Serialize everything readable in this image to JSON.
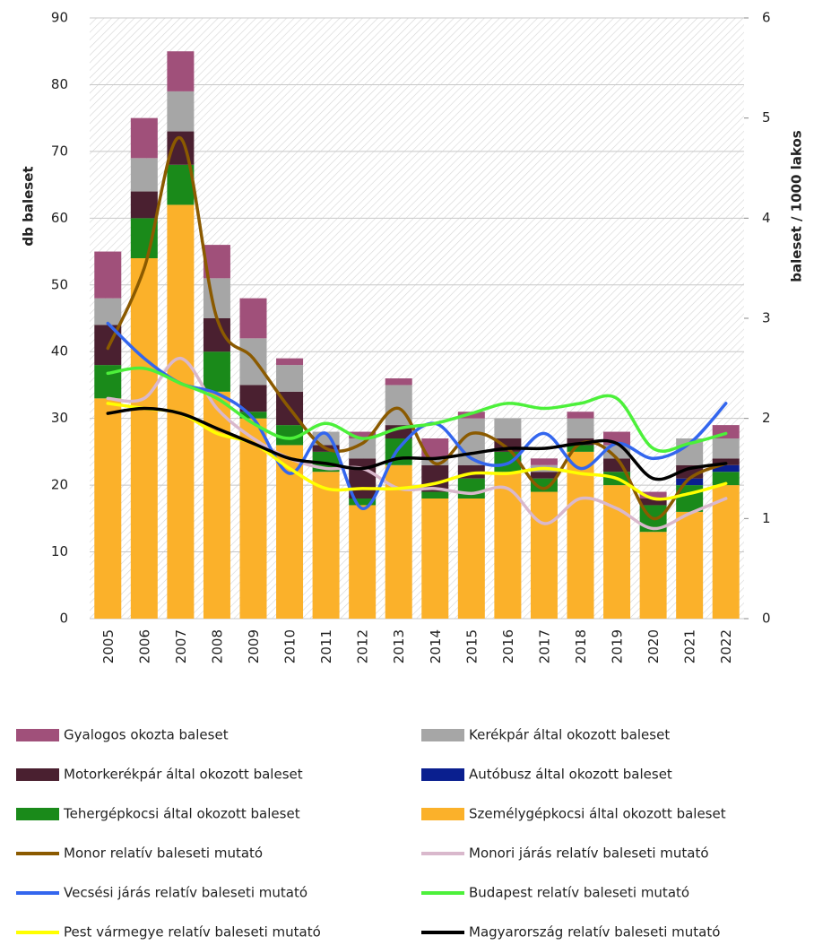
{
  "chart_data": {
    "type": "bar",
    "categories": [
      "2005",
      "2006",
      "2007",
      "2008",
      "2009",
      "2010",
      "2011",
      "2012",
      "2013",
      "2014",
      "2015",
      "2016",
      "2017",
      "2018",
      "2019",
      "2020",
      "2021",
      "2022"
    ],
    "y_label": "db baleset",
    "y2_label": "baleset / 1000 lakos",
    "ylim": [
      0,
      90
    ],
    "yticks": [
      0,
      10,
      20,
      30,
      40,
      50,
      60,
      70,
      80,
      90
    ],
    "y2lim": [
      0,
      6
    ],
    "y2ticks": [
      0,
      1,
      2,
      3,
      4,
      5,
      6
    ],
    "grid": true,
    "stacked": true,
    "legend": "bottom",
    "series": [
      {
        "name": "Személygépkocsi által okozott baleset",
        "type": "bar",
        "color": "#fbb12a",
        "values": [
          33,
          54,
          62,
          34,
          30,
          26,
          22,
          17,
          23,
          18,
          18,
          22,
          19,
          25,
          20,
          13,
          16,
          20
        ]
      },
      {
        "name": "Tehergépkocsi által okozott baleset",
        "type": "bar",
        "color": "#1a8a1a",
        "values": [
          5,
          6,
          6,
          6,
          1,
          3,
          3,
          1,
          4,
          1,
          3,
          3,
          2,
          1,
          2,
          4,
          4,
          2
        ]
      },
      {
        "name": "Autóbusz által okozott baleset",
        "type": "bar",
        "color": "#0a1f8f",
        "values": [
          0,
          0,
          0,
          0,
          0,
          0,
          0,
          0,
          0,
          0,
          0,
          0,
          0,
          0,
          0,
          0,
          1,
          1
        ]
      },
      {
        "name": "Motorkerékpár által okozott baleset",
        "type": "bar",
        "color": "#4a2030",
        "values": [
          6,
          4,
          5,
          5,
          4,
          5,
          1,
          6,
          2,
          4,
          2,
          2,
          1,
          1,
          2,
          1,
          2,
          1
        ]
      },
      {
        "name": "Kerékpár által okozott baleset",
        "type": "bar",
        "color": "#a6a6a6",
        "values": [
          4,
          5,
          6,
          6,
          7,
          4,
          2,
          3,
          6,
          1,
          7,
          3,
          1,
          3,
          2,
          0,
          4,
          3
        ]
      },
      {
        "name": "Gyalogos okozta baleset",
        "type": "bar",
        "color": "#a0507a",
        "values": [
          7,
          6,
          6,
          5,
          6,
          1,
          0,
          1,
          1,
          3,
          1,
          0,
          1,
          1,
          2,
          1,
          0,
          2
        ]
      },
      {
        "name": "Monor relatív baleseti mutató",
        "type": "line",
        "axis": "y2",
        "color": "#8b5a00",
        "values": [
          2.7,
          3.5,
          4.8,
          3.0,
          2.6,
          2.1,
          1.7,
          1.75,
          2.1,
          1.55,
          1.85,
          1.7,
          1.3,
          1.75,
          1.6,
          1.0,
          1.4,
          1.55
        ]
      },
      {
        "name": "Monori járás relatív baleseti mutató",
        "type": "line",
        "axis": "y2",
        "color": "#d9b8cc",
        "values": [
          2.2,
          2.2,
          2.6,
          2.1,
          1.8,
          1.6,
          1.5,
          1.5,
          1.3,
          1.3,
          1.25,
          1.3,
          0.95,
          1.2,
          1.1,
          0.9,
          1.05,
          1.2
        ]
      },
      {
        "name": "Vecsési járás relatív baleseti mutató",
        "type": "line",
        "axis": "y2",
        "color": "#3366ee",
        "values": [
          2.95,
          2.6,
          2.35,
          2.25,
          2.0,
          1.45,
          1.85,
          1.1,
          1.7,
          1.95,
          1.6,
          1.55,
          1.85,
          1.5,
          1.75,
          1.6,
          1.75,
          2.15
        ]
      },
      {
        "name": "Budapest relatív baleseti mutató",
        "type": "line",
        "axis": "y2",
        "color": "#4cf03a",
        "values": [
          2.45,
          2.5,
          2.35,
          2.2,
          1.95,
          1.8,
          1.95,
          1.8,
          1.9,
          1.95,
          2.05,
          2.15,
          2.1,
          2.15,
          2.2,
          1.7,
          1.75,
          1.85
        ]
      },
      {
        "name": "Pest vármegye relatív baleseti mutató",
        "type": "line",
        "axis": "y2",
        "color": "#ffff00",
        "values": [
          2.15,
          2.1,
          2.05,
          1.85,
          1.75,
          1.5,
          1.3,
          1.3,
          1.3,
          1.35,
          1.45,
          1.45,
          1.5,
          1.45,
          1.4,
          1.2,
          1.25,
          1.35
        ]
      },
      {
        "name": "Magyarország relatív baleseti mutató",
        "type": "line",
        "axis": "y2",
        "color": "#000000",
        "values": [
          2.05,
          2.1,
          2.05,
          1.9,
          1.75,
          1.6,
          1.55,
          1.5,
          1.6,
          1.6,
          1.65,
          1.7,
          1.7,
          1.75,
          1.75,
          1.4,
          1.5,
          1.55
        ]
      }
    ]
  }
}
